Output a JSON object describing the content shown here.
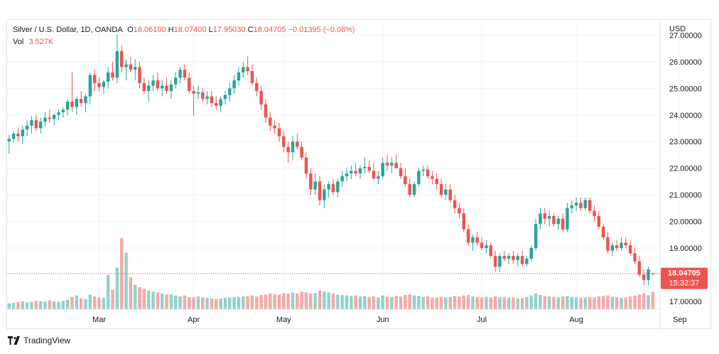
{
  "legend": {
    "symbol": "Silver / U.S. Dollar, 1D, OANDA",
    "o_label": "O",
    "o_value": "18.06100",
    "h_label": "H",
    "h_value": "18.07400",
    "l_label": "L",
    "l_value": "17.95030",
    "c_label": "C",
    "c_value": "18.04705",
    "change": "−0.01395 (−0.08%)",
    "vol_label": "Vol",
    "vol_value": "3.527K"
  },
  "footer": {
    "brand": "TradingView"
  },
  "chart_data": {
    "type": "candlestick",
    "currency_label": "USD",
    "ylim": [
      16.7,
      27.6
    ],
    "y_ticks": [
      17,
      18,
      19,
      20,
      21,
      22,
      23,
      24,
      25,
      26,
      27
    ],
    "y_tick_labels": [
      "17.00000",
      "18.00000",
      "19.00000",
      "20.00000",
      "21.00000",
      "22.00000",
      "23.00000",
      "24.00000",
      "25.00000",
      "26.00000",
      "27.00000"
    ],
    "x_tick_labels": [
      {
        "label": "Mar",
        "index": 20
      },
      {
        "label": "Apr",
        "index": 41
      },
      {
        "label": "May",
        "index": 61
      },
      {
        "label": "Jun",
        "index": 83
      },
      {
        "label": "Jul",
        "index": 105
      },
      {
        "label": "Aug",
        "index": 126
      },
      {
        "label": "Sep",
        "index": 149
      }
    ],
    "last_price": "18.04705",
    "last_value": 18.047,
    "countdown": "15:32:37",
    "up_color": "#26a69a",
    "down_color": "#ef5350",
    "candles": [
      [
        23.0,
        23.25,
        22.55,
        23.1,
        1.2
      ],
      [
        23.1,
        23.4,
        22.95,
        23.3,
        1.3
      ],
      [
        23.3,
        23.5,
        23.0,
        23.2,
        1.5
      ],
      [
        23.2,
        23.6,
        22.9,
        23.45,
        1.6
      ],
      [
        23.45,
        23.8,
        23.2,
        23.6,
        1.4
      ],
      [
        23.6,
        23.95,
        23.3,
        23.8,
        1.5
      ],
      [
        23.8,
        24.0,
        23.4,
        23.5,
        1.7
      ],
      [
        23.5,
        23.9,
        23.3,
        23.75,
        1.6
      ],
      [
        23.75,
        24.1,
        23.55,
        23.9,
        1.5
      ],
      [
        23.9,
        24.2,
        23.7,
        23.85,
        1.8
      ],
      [
        23.85,
        24.05,
        23.6,
        24.0,
        1.6
      ],
      [
        24.0,
        24.2,
        23.8,
        24.1,
        1.5
      ],
      [
        24.1,
        24.3,
        23.9,
        24.2,
        1.7
      ],
      [
        24.2,
        24.6,
        24.0,
        24.5,
        1.9
      ],
      [
        24.5,
        25.6,
        24.1,
        24.3,
        2.5
      ],
      [
        24.3,
        24.7,
        24.0,
        24.6,
        2.8
      ],
      [
        24.6,
        24.9,
        24.3,
        24.45,
        2.2
      ],
      [
        24.45,
        24.8,
        24.1,
        24.7,
        2.0
      ],
      [
        24.7,
        25.6,
        24.4,
        25.5,
        3.0
      ],
      [
        25.5,
        25.7,
        24.9,
        25.2,
        2.6
      ],
      [
        25.2,
        25.4,
        24.9,
        25.05,
        2.4
      ],
      [
        25.05,
        25.3,
        24.8,
        25.25,
        2.3
      ],
      [
        25.25,
        25.8,
        25.0,
        25.6,
        7.0
      ],
      [
        25.6,
        26.0,
        25.3,
        25.4,
        4.0
      ],
      [
        25.4,
        27.0,
        25.2,
        26.4,
        8.5
      ],
      [
        26.4,
        26.6,
        25.6,
        25.8,
        14.5
      ],
      [
        25.8,
        26.1,
        25.3,
        25.9,
        11.5
      ],
      [
        25.9,
        26.2,
        25.6,
        25.7,
        6.5
      ],
      [
        25.7,
        26.1,
        25.3,
        25.8,
        5.0
      ],
      [
        25.8,
        26.0,
        25.0,
        25.2,
        4.5
      ],
      [
        25.2,
        25.4,
        24.8,
        24.9,
        4.2
      ],
      [
        24.9,
        25.3,
        24.5,
        25.1,
        3.8
      ],
      [
        25.1,
        25.5,
        24.9,
        25.3,
        3.6
      ],
      [
        25.3,
        25.6,
        24.9,
        25.0,
        3.4
      ],
      [
        25.0,
        25.3,
        24.7,
        25.1,
        3.2
      ],
      [
        25.1,
        25.4,
        24.8,
        24.9,
        3.0
      ],
      [
        24.9,
        25.3,
        24.6,
        25.15,
        3.0
      ],
      [
        25.15,
        25.6,
        25.0,
        25.4,
        2.8
      ],
      [
        25.4,
        25.8,
        25.2,
        25.7,
        2.6
      ],
      [
        25.7,
        25.9,
        25.3,
        25.4,
        2.8
      ],
      [
        25.4,
        25.6,
        24.8,
        24.9,
        2.5
      ],
      [
        24.9,
        25.1,
        23.95,
        24.8,
        2.4
      ],
      [
        24.8,
        25.1,
        24.6,
        24.85,
        2.6
      ],
      [
        24.85,
        25.0,
        24.5,
        24.6,
        2.4
      ],
      [
        24.6,
        24.9,
        24.4,
        24.7,
        2.3
      ],
      [
        24.7,
        24.9,
        24.3,
        24.45,
        2.2
      ],
      [
        24.45,
        24.7,
        24.2,
        24.35,
        2.1
      ],
      [
        24.35,
        24.7,
        24.1,
        24.6,
        2.2
      ],
      [
        24.6,
        24.9,
        24.4,
        24.75,
        2.3
      ],
      [
        24.75,
        25.2,
        24.5,
        25.0,
        2.4
      ],
      [
        25.0,
        25.5,
        24.8,
        25.3,
        2.5
      ],
      [
        25.3,
        25.8,
        25.1,
        25.6,
        2.5
      ],
      [
        25.6,
        26.0,
        25.4,
        25.8,
        2.6
      ],
      [
        25.8,
        26.2,
        25.5,
        25.65,
        2.7
      ],
      [
        25.65,
        25.9,
        25.1,
        25.2,
        2.8
      ],
      [
        25.2,
        25.4,
        24.7,
        24.9,
        2.6
      ],
      [
        24.9,
        25.1,
        24.2,
        24.4,
        2.9
      ],
      [
        24.4,
        24.6,
        23.7,
        23.9,
        3.0
      ],
      [
        23.9,
        24.1,
        23.4,
        23.6,
        3.2
      ],
      [
        23.6,
        23.8,
        23.3,
        23.5,
        3.1
      ],
      [
        23.5,
        23.7,
        23.0,
        23.2,
        3.0
      ],
      [
        23.2,
        23.4,
        22.6,
        22.8,
        3.3
      ],
      [
        22.8,
        23.0,
        22.2,
        22.6,
        3.2
      ],
      [
        22.6,
        23.2,
        22.3,
        23.0,
        3.4
      ],
      [
        23.0,
        23.3,
        22.7,
        22.8,
        3.2
      ],
      [
        22.8,
        23.0,
        22.3,
        22.4,
        3.6
      ],
      [
        22.4,
        22.6,
        21.6,
        21.8,
        3.4
      ],
      [
        21.8,
        22.0,
        21.0,
        21.2,
        3.2
      ],
      [
        21.2,
        21.8,
        21.0,
        21.5,
        3.3
      ],
      [
        21.5,
        21.7,
        20.6,
        20.8,
        3.8
      ],
      [
        20.8,
        21.4,
        20.5,
        21.2,
        3.6
      ],
      [
        21.2,
        21.5,
        20.9,
        21.4,
        3.4
      ],
      [
        21.4,
        21.6,
        21.0,
        21.1,
        3.2
      ],
      [
        21.1,
        21.6,
        20.9,
        21.5,
        3.0
      ],
      [
        21.5,
        21.9,
        21.3,
        21.7,
        2.9
      ],
      [
        21.7,
        22.0,
        21.5,
        21.8,
        2.8
      ],
      [
        21.8,
        22.1,
        21.6,
        21.9,
        2.7
      ],
      [
        21.9,
        22.2,
        21.7,
        21.8,
        2.8
      ],
      [
        21.8,
        22.1,
        21.6,
        22.0,
        2.6
      ],
      [
        22.0,
        22.4,
        21.8,
        22.05,
        2.7
      ],
      [
        22.05,
        22.3,
        21.8,
        21.9,
        2.5
      ],
      [
        21.9,
        22.2,
        21.6,
        21.6,
        2.6
      ],
      [
        21.6,
        21.9,
        21.4,
        21.7,
        2.4
      ],
      [
        21.7,
        22.4,
        21.6,
        22.2,
        2.8
      ],
      [
        22.2,
        22.5,
        21.9,
        22.1,
        2.6
      ],
      [
        22.1,
        22.4,
        21.8,
        22.2,
        2.5
      ],
      [
        22.2,
        22.5,
        22.0,
        22.0,
        2.7
      ],
      [
        22.0,
        22.2,
        21.6,
        21.7,
        2.6
      ],
      [
        21.7,
        22.0,
        21.3,
        21.4,
        2.9
      ],
      [
        21.4,
        21.6,
        20.9,
        21.0,
        3.0
      ],
      [
        21.0,
        21.5,
        20.9,
        21.4,
        2.8
      ],
      [
        21.4,
        22.0,
        21.3,
        21.9,
        2.7
      ],
      [
        21.9,
        22.1,
        21.7,
        21.95,
        2.5
      ],
      [
        21.95,
        22.1,
        21.6,
        21.7,
        2.6
      ],
      [
        21.7,
        21.9,
        21.4,
        21.6,
        2.4
      ],
      [
        21.6,
        21.8,
        21.2,
        21.4,
        2.4
      ],
      [
        21.4,
        21.6,
        20.9,
        21.0,
        2.5
      ],
      [
        21.0,
        21.4,
        20.8,
        21.2,
        2.4
      ],
      [
        21.2,
        21.4,
        20.7,
        20.8,
        2.5
      ],
      [
        20.8,
        21.0,
        20.3,
        20.5,
        2.7
      ],
      [
        20.5,
        20.7,
        20.1,
        20.3,
        2.6
      ],
      [
        20.3,
        20.5,
        19.6,
        19.7,
        2.8
      ],
      [
        19.7,
        19.9,
        19.1,
        19.2,
        2.9
      ],
      [
        19.2,
        19.5,
        18.9,
        19.4,
        2.6
      ],
      [
        19.4,
        19.6,
        19.1,
        19.2,
        2.5
      ],
      [
        19.2,
        19.4,
        18.9,
        19.0,
        2.4
      ],
      [
        19.0,
        19.3,
        18.8,
        19.1,
        2.5
      ],
      [
        19.1,
        19.2,
        18.6,
        18.7,
        2.4
      ],
      [
        18.7,
        18.9,
        18.1,
        18.3,
        2.6
      ],
      [
        18.3,
        18.8,
        18.1,
        18.7,
        2.5
      ],
      [
        18.7,
        18.9,
        18.5,
        18.6,
        2.4
      ],
      [
        18.6,
        18.8,
        18.4,
        18.7,
        2.3
      ],
      [
        18.7,
        18.9,
        18.4,
        18.55,
        2.4
      ],
      [
        18.55,
        18.8,
        18.3,
        18.7,
        2.2
      ],
      [
        18.7,
        18.9,
        18.3,
        18.4,
        2.3
      ],
      [
        18.4,
        18.7,
        18.3,
        18.6,
        2.5
      ],
      [
        18.6,
        19.1,
        18.5,
        19.0,
        2.8
      ],
      [
        19.0,
        20.1,
        18.9,
        19.9,
        3.2
      ],
      [
        19.9,
        20.5,
        19.7,
        20.3,
        2.9
      ],
      [
        20.3,
        20.5,
        19.9,
        20.1,
        2.7
      ],
      [
        20.1,
        20.4,
        19.8,
        20.2,
        2.6
      ],
      [
        20.2,
        20.3,
        19.8,
        19.9,
        2.5
      ],
      [
        19.9,
        20.2,
        19.7,
        20.1,
        2.4
      ],
      [
        20.1,
        20.3,
        19.6,
        19.7,
        2.6
      ],
      [
        19.7,
        20.7,
        19.6,
        20.5,
        2.7
      ],
      [
        20.5,
        20.8,
        20.3,
        20.6,
        2.5
      ],
      [
        20.6,
        20.9,
        20.4,
        20.7,
        2.4
      ],
      [
        20.7,
        20.9,
        20.4,
        20.5,
        2.3
      ],
      [
        20.5,
        20.9,
        20.4,
        20.8,
        2.4
      ],
      [
        20.8,
        20.9,
        20.3,
        20.4,
        2.5
      ],
      [
        20.4,
        20.6,
        20.0,
        20.2,
        2.4
      ],
      [
        20.2,
        20.4,
        19.7,
        19.8,
        2.6
      ],
      [
        19.8,
        19.9,
        19.3,
        19.4,
        2.7
      ],
      [
        19.4,
        19.6,
        18.8,
        18.9,
        2.8
      ],
      [
        18.9,
        19.2,
        18.7,
        19.1,
        2.5
      ],
      [
        19.1,
        19.3,
        18.9,
        19.0,
        2.4
      ],
      [
        19.0,
        19.4,
        18.9,
        19.2,
        2.3
      ],
      [
        19.2,
        19.4,
        19.0,
        19.1,
        2.4
      ],
      [
        19.1,
        19.3,
        18.7,
        18.8,
        2.6
      ],
      [
        18.8,
        19.0,
        18.4,
        18.5,
        2.8
      ],
      [
        18.5,
        18.7,
        17.9,
        18.0,
        3.0
      ],
      [
        18.0,
        18.2,
        17.6,
        17.8,
        3.2
      ],
      [
        17.8,
        18.3,
        17.6,
        18.2,
        2.9
      ],
      [
        18.06,
        18.07,
        17.95,
        18.05,
        3.5
      ]
    ]
  }
}
